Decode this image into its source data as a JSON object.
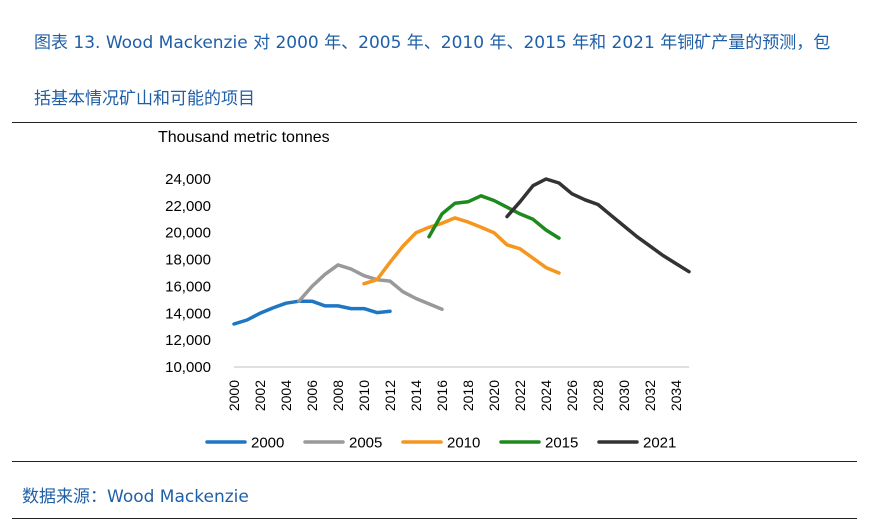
{
  "caption": {
    "line1": "图表 13. Wood Mackenzie 对 2000 年、2005 年、2010 年、2015 年和 2021 年铜矿产量的预测，包",
    "line2": "括基本情况矿山和可能的项目"
  },
  "source": "数据来源：Wood Mackenzie",
  "colors": {
    "caption": "#1f5fa8",
    "s2000": "#1f77c4",
    "s2005": "#999999",
    "s2010": "#f5961e",
    "s2015": "#1e8a1e",
    "s2021": "#333333"
  },
  "chart_data": {
    "type": "line",
    "ylabel": "Thousand metric tonnes",
    "ylim": [
      10000,
      24000
    ],
    "xlim": [
      2000,
      2035
    ],
    "y_ticks": [
      "10,000",
      "12,000",
      "14,000",
      "16,000",
      "18,000",
      "20,000",
      "22,000",
      "24,000"
    ],
    "x_ticks": [
      "2000",
      "2002",
      "2004",
      "2006",
      "2008",
      "2010",
      "2012",
      "2014",
      "2016",
      "2018",
      "2020",
      "2022",
      "2024",
      "2026",
      "2028",
      "2030",
      "2032",
      "2034"
    ],
    "grid": false,
    "legend_position": "bottom",
    "series": [
      {
        "name": "2000",
        "color": "#1f77c4",
        "x": [
          2000,
          2001,
          2002,
          2003,
          2004,
          2005,
          2006,
          2007,
          2008,
          2009,
          2010,
          2011,
          2012
        ],
        "y": [
          13200,
          13500,
          14000,
          14400,
          14750,
          14900,
          14900,
          14550,
          14550,
          14350,
          14350,
          14050,
          14150
        ]
      },
      {
        "name": "2005",
        "color": "#999999",
        "x": [
          2005,
          2006,
          2007,
          2008,
          2009,
          2010,
          2011,
          2012,
          2013,
          2014,
          2015,
          2016
        ],
        "y": [
          14900,
          16000,
          16900,
          17600,
          17300,
          16800,
          16500,
          16400,
          15600,
          15100,
          14700,
          14300
        ]
      },
      {
        "name": "2010",
        "color": "#f5961e",
        "x": [
          2010,
          2011,
          2012,
          2013,
          2014,
          2015,
          2016,
          2017,
          2018,
          2019,
          2020,
          2021,
          2022,
          2023,
          2024,
          2025
        ],
        "y": [
          16200,
          16500,
          17800,
          19000,
          20000,
          20400,
          20700,
          21100,
          20800,
          20400,
          20000,
          19100,
          18800,
          18100,
          17400,
          17000
        ]
      },
      {
        "name": "2015",
        "color": "#1e8a1e",
        "x": [
          2015,
          2016,
          2017,
          2018,
          2019,
          2020,
          2021,
          2022,
          2023,
          2024,
          2025
        ],
        "y": [
          19700,
          21400,
          22200,
          22300,
          22750,
          22400,
          21900,
          21400,
          21000,
          20200,
          19600
        ]
      },
      {
        "name": "2021",
        "color": "#333333",
        "x": [
          2021,
          2022,
          2023,
          2024,
          2025,
          2026,
          2027,
          2028,
          2029,
          2030,
          2031,
          2032,
          2033,
          2034,
          2035
        ],
        "y": [
          21200,
          22300,
          23500,
          24000,
          23700,
          22900,
          22450,
          22100,
          21300,
          20500,
          19700,
          19000,
          18300,
          17700,
          17100
        ]
      }
    ]
  }
}
